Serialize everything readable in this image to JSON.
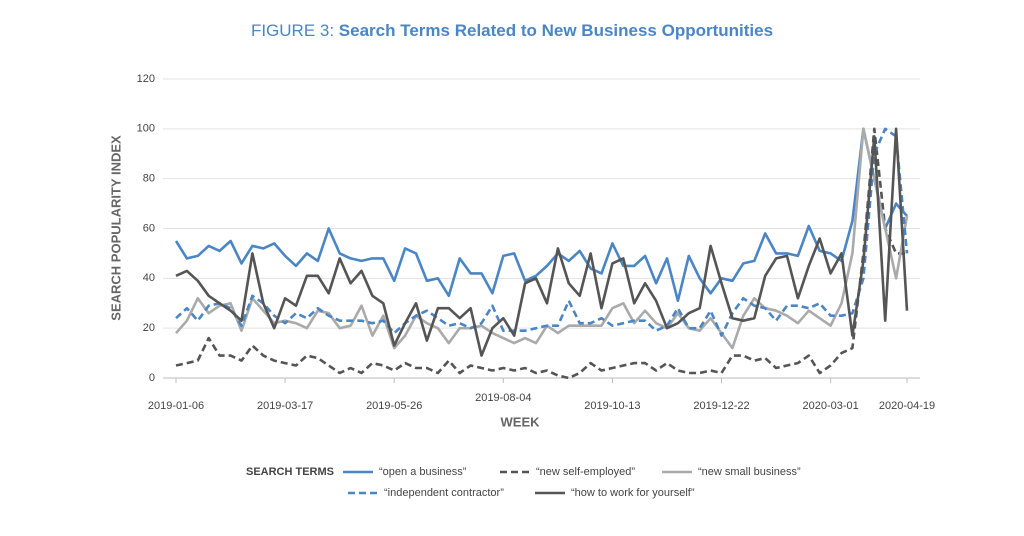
{
  "chart_data": {
    "type": "line",
    "title_prefix": "FIGURE 3:",
    "title": "Search Terms Related to New Business Opportunities",
    "y_label": "SEARCH POPULARITY INDEX",
    "x_label": "WEEK",
    "legend_title": "SEARCH TERMS",
    "categories": [
      "2019-01-06",
      null,
      null,
      null,
      null,
      null,
      null,
      null,
      null,
      null,
      "2019-03-17",
      null,
      null,
      null,
      null,
      null,
      null,
      null,
      null,
      null,
      "2019-05-26",
      null,
      null,
      null,
      null,
      null,
      null,
      null,
      null,
      null,
      "2019-08-04",
      null,
      null,
      null,
      null,
      null,
      null,
      null,
      null,
      null,
      "2019-10-13",
      null,
      null,
      null,
      null,
      null,
      null,
      null,
      null,
      null,
      "2019-12-22",
      null,
      null,
      null,
      null,
      null,
      null,
      null,
      null,
      null,
      "2020-03-01",
      null,
      null,
      null,
      null,
      null,
      null,
      "2020-04-19"
    ],
    "ylim": [
      0,
      120
    ],
    "yticks": [
      0,
      20,
      40,
      60,
      80,
      100,
      120
    ],
    "grid": true,
    "series": [
      {
        "name": "“open a business”",
        "color": "#4a86c5",
        "dashed": false,
        "values": [
          55,
          48,
          49,
          53,
          51,
          55,
          46,
          53,
          52,
          54,
          49,
          45,
          50,
          47,
          60,
          50,
          48,
          47,
          48,
          48,
          39,
          52,
          50,
          39,
          40,
          33,
          48,
          42,
          42,
          34,
          49,
          50,
          39,
          41,
          45,
          50,
          47,
          51,
          44,
          42,
          54,
          45,
          45,
          49,
          38,
          48,
          31,
          49,
          40,
          34,
          40,
          39,
          46,
          47,
          58,
          50,
          50,
          49,
          61,
          51,
          50,
          47,
          63,
          100,
          80,
          60,
          70,
          65
        ]
      },
      {
        "name": "“new self-employed”",
        "color": "#555555",
        "dashed": true,
        "values": [
          5,
          6,
          7,
          16,
          9,
          9,
          7,
          13,
          9,
          7,
          6,
          5,
          9,
          8,
          5,
          2,
          4,
          2,
          6,
          5,
          3,
          6,
          4,
          4,
          2,
          7,
          2,
          5,
          4,
          3,
          4,
          3,
          4,
          2,
          3,
          1,
          0,
          2,
          6,
          3,
          4,
          5,
          6,
          6,
          3,
          6,
          3,
          2,
          2,
          3,
          2,
          9,
          9,
          7,
          8,
          4,
          5,
          6,
          9,
          2,
          5,
          10,
          12,
          50,
          100,
          60,
          50,
          50
        ]
      },
      {
        "name": "“new small business”",
        "color": "#aaaaaa",
        "dashed": false,
        "values": [
          18,
          23,
          32,
          26,
          29,
          30,
          19,
          32,
          27,
          22,
          23,
          22,
          20,
          27,
          26,
          20,
          21,
          29,
          17,
          25,
          12,
          17,
          25,
          22,
          20,
          14,
          20,
          20,
          21,
          18,
          16,
          14,
          16,
          14,
          21,
          18,
          21,
          21,
          21,
          21,
          28,
          30,
          22,
          27,
          22,
          20,
          26,
          20,
          19,
          24,
          18,
          12,
          25,
          32,
          28,
          27,
          25,
          22,
          27,
          24,
          21,
          30,
          50,
          100,
          80,
          60,
          40,
          65
        ]
      },
      {
        "name": "“independent contractor”",
        "color": "#4a86c5",
        "dashed": true,
        "values": [
          24,
          28,
          23,
          29,
          30,
          28,
          21,
          33,
          30,
          25,
          22,
          26,
          24,
          28,
          25,
          23,
          23,
          23,
          22,
          23,
          18,
          22,
          25,
          27,
          24,
          21,
          22,
          20,
          22,
          29,
          19,
          19,
          19,
          20,
          21,
          21,
          31,
          22,
          22,
          24,
          21,
          22,
          23,
          23,
          19,
          21,
          28,
          20,
          20,
          27,
          17,
          26,
          32,
          29,
          28,
          23,
          29,
          29,
          28,
          30,
          25,
          25,
          26,
          40,
          90,
          100,
          97,
          50
        ]
      },
      {
        "name": "“how to work for yourself”",
        "color": "#555555",
        "dashed": false,
        "values": [
          41,
          43,
          39,
          33,
          30,
          27,
          23,
          50,
          30,
          20,
          32,
          29,
          41,
          41,
          34,
          48,
          38,
          43,
          33,
          30,
          13,
          22,
          30,
          15,
          28,
          28,
          24,
          28,
          9,
          20,
          24,
          17,
          38,
          40,
          30,
          52,
          38,
          33,
          50,
          28,
          46,
          48,
          30,
          38,
          31,
          20,
          22,
          26,
          28,
          53,
          38,
          24,
          23,
          24,
          41,
          48,
          49,
          32,
          45,
          56,
          42,
          50,
          17,
          47,
          97,
          23,
          100,
          27
        ]
      }
    ]
  }
}
